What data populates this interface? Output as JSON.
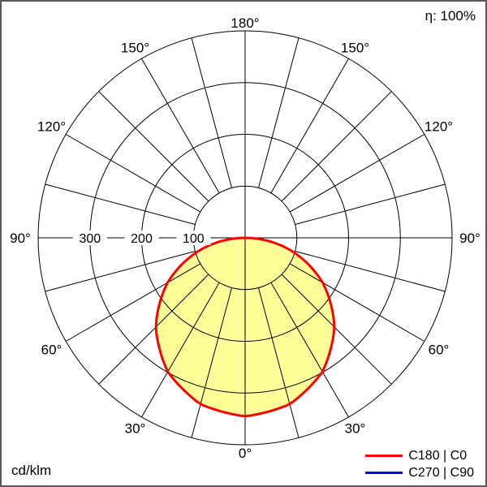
{
  "header": {
    "efficiency": "η: 100%"
  },
  "footer": {
    "unit": "cd/klm"
  },
  "legend": {
    "items": [
      {
        "label": "C180 | C0",
        "color": "#ff0000"
      },
      {
        "label": "C270 | C90",
        "color": "#0000ff"
      }
    ]
  },
  "chart_data": {
    "type": "polar",
    "subtype": "photometric-intensity-distribution",
    "unit": "cd/klm",
    "efficiency_percent": 100,
    "grid": true,
    "legend_position": "bottom-right",
    "angle_step_deg": 15,
    "angle_labels_deg": [
      0,
      30,
      60,
      90,
      120,
      150,
      180
    ],
    "radial_ticks": [
      100,
      200,
      300
    ],
    "radial_max": 400,
    "curves": [
      {
        "name": "C180 | C0",
        "color": "#ff0000",
        "fill_color": "#ffff99",
        "stroke_width": 3,
        "symmetric_mirror": true,
        "angles_deg": [
          0,
          15,
          30,
          45,
          60,
          75,
          90
        ],
        "values_cd_klm": [
          345,
          333,
          299,
          244,
          173,
          89,
          0
        ]
      },
      {
        "name": "C270 | C90",
        "color": "#0000ff",
        "fill_color": null,
        "stroke_width": 2,
        "symmetric_mirror": true,
        "angles_deg": [
          0,
          15,
          30,
          45,
          60,
          75,
          90
        ],
        "values_cd_klm": [
          345,
          333,
          299,
          244,
          173,
          89,
          0
        ]
      }
    ]
  }
}
